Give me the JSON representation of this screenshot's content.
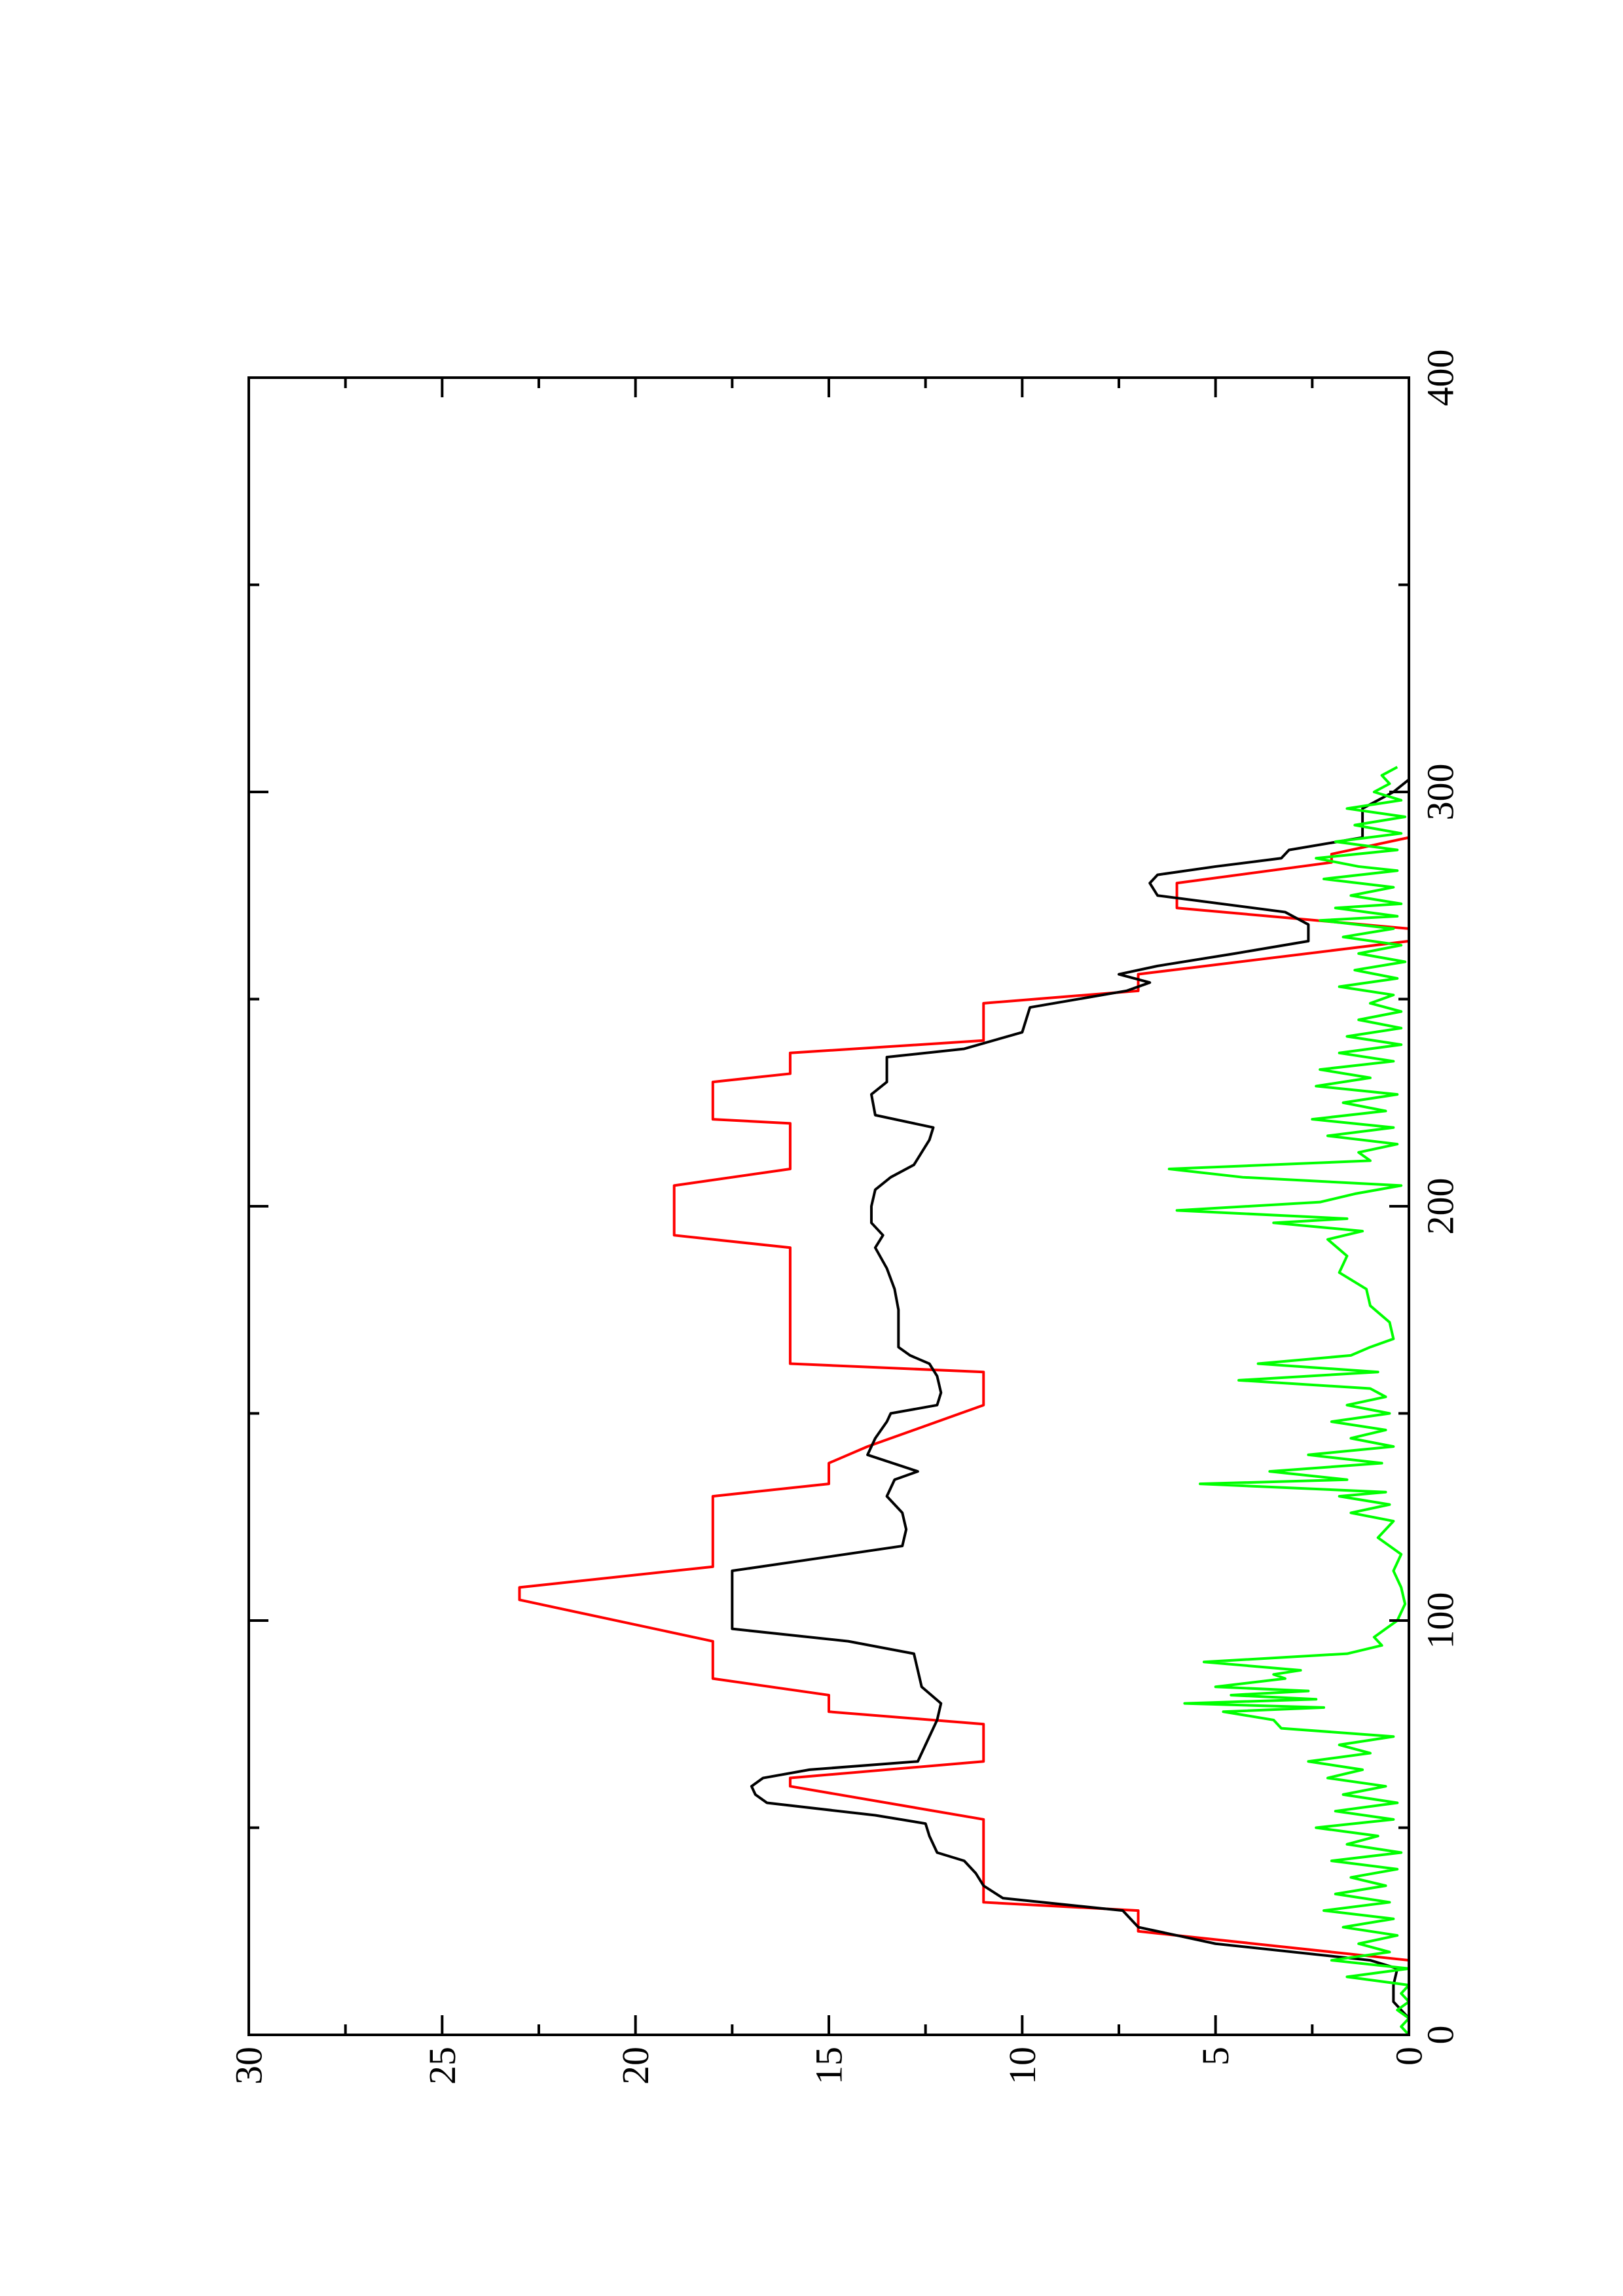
{
  "chart_data": {
    "type": "line",
    "orientation": "rotated-90-ccw",
    "title": "",
    "xlabel": "",
    "ylabel": "",
    "xlim": [
      0,
      400
    ],
    "ylim": [
      0,
      30
    ],
    "x_ticks": [
      0,
      100,
      200,
      300,
      400
    ],
    "y_ticks": [
      0,
      5,
      10,
      15,
      20,
      25,
      30
    ],
    "x_tick_labels": [
      "0",
      "100",
      "200",
      "300",
      "400"
    ],
    "y_tick_labels": [
      "0",
      "5",
      "10",
      "15",
      "20",
      "25",
      "30"
    ],
    "x_minor_step": 50,
    "y_minor_step": 2.5,
    "grid": false,
    "legend": "none",
    "series": [
      {
        "color": "#ff0000",
        "points": [
          [
            0,
            0
          ],
          [
            18,
            0
          ],
          [
            25,
            7
          ],
          [
            30,
            7
          ],
          [
            32,
            11
          ],
          [
            52,
            11
          ],
          [
            60,
            16
          ],
          [
            62,
            16
          ],
          [
            66,
            11
          ],
          [
            75,
            11
          ],
          [
            78,
            15
          ],
          [
            82,
            15
          ],
          [
            86,
            18
          ],
          [
            95,
            18
          ],
          [
            105,
            23
          ],
          [
            108,
            23
          ],
          [
            113,
            18
          ],
          [
            130,
            18
          ],
          [
            133,
            15
          ],
          [
            138,
            15
          ],
          [
            142,
            14
          ],
          [
            152,
            11
          ],
          [
            160,
            11
          ],
          [
            162,
            16
          ],
          [
            190,
            16
          ],
          [
            193,
            19
          ],
          [
            205,
            19
          ],
          [
            209,
            16
          ],
          [
            220,
            16
          ],
          [
            221,
            18
          ],
          [
            230,
            18
          ],
          [
            232,
            16
          ],
          [
            237,
            16
          ],
          [
            240,
            11
          ],
          [
            249,
            11
          ],
          [
            252,
            7
          ],
          [
            256,
            7
          ],
          [
            264,
            0
          ],
          [
            267,
            0
          ],
          [
            272,
            6
          ],
          [
            278,
            6
          ],
          [
            283,
            2
          ],
          [
            285,
            2
          ],
          [
            289,
            0
          ],
          [
            300,
            0
          ]
        ]
      },
      {
        "color": "#000000",
        "points": [
          [
            0,
            0
          ],
          [
            4,
            0
          ],
          [
            8,
            0.4
          ],
          [
            12,
            0.4
          ],
          [
            16,
            0.3
          ],
          [
            18,
            1
          ],
          [
            22,
            5
          ],
          [
            26,
            7
          ],
          [
            30,
            7.4
          ],
          [
            33,
            10.5
          ],
          [
            36,
            11
          ],
          [
            39,
            11.2
          ],
          [
            42,
            11.5
          ],
          [
            44,
            12.2
          ],
          [
            48,
            12.4
          ],
          [
            51,
            12.5
          ],
          [
            53,
            13.8
          ],
          [
            56,
            16.6
          ],
          [
            58,
            16.9
          ],
          [
            60,
            17
          ],
          [
            62,
            16.7
          ],
          [
            64,
            15.5
          ],
          [
            66,
            12.7
          ],
          [
            70,
            12.5
          ],
          [
            72,
            12.4
          ],
          [
            76,
            12.2
          ],
          [
            80,
            12.1
          ],
          [
            84,
            12.6
          ],
          [
            88,
            12.7
          ],
          [
            92,
            12.8
          ],
          [
            95,
            14.5
          ],
          [
            98,
            17.5
          ],
          [
            112,
            17.5
          ],
          [
            115,
            15.3
          ],
          [
            118,
            13.1
          ],
          [
            122,
            13
          ],
          [
            126,
            13.1
          ],
          [
            130,
            13.5
          ],
          [
            134,
            13.3
          ],
          [
            136,
            12.7
          ],
          [
            140,
            14
          ],
          [
            144,
            13.8
          ],
          [
            148,
            13.5
          ],
          [
            150,
            13.4
          ],
          [
            152,
            12.2
          ],
          [
            155,
            12.1
          ],
          [
            159,
            12.2
          ],
          [
            162,
            12.4
          ],
          [
            164,
            12.9
          ],
          [
            166,
            13.2
          ],
          [
            175,
            13.2
          ],
          [
            180,
            13.3
          ],
          [
            185,
            13.5
          ],
          [
            190,
            13.8
          ],
          [
            193,
            13.6
          ],
          [
            196,
            13.9
          ],
          [
            200,
            13.9
          ],
          [
            204,
            13.8
          ],
          [
            207,
            13.4
          ],
          [
            210,
            12.8
          ],
          [
            213,
            12.6
          ],
          [
            216,
            12.4
          ],
          [
            219,
            12.3
          ],
          [
            222,
            13.8
          ],
          [
            227,
            13.9
          ],
          [
            230,
            13.5
          ],
          [
            236,
            13.5
          ],
          [
            238,
            11.5
          ],
          [
            242,
            10
          ],
          [
            248,
            9.8
          ],
          [
            252,
            7.3
          ],
          [
            254,
            6.7
          ],
          [
            256,
            7.5
          ],
          [
            258,
            6.5
          ],
          [
            261,
            4.5
          ],
          [
            264,
            2.6
          ],
          [
            268,
            2.6
          ],
          [
            271,
            3.2
          ],
          [
            275,
            6.5
          ],
          [
            278,
            6.7
          ],
          [
            280,
            6.5
          ],
          [
            282,
            5
          ],
          [
            284,
            3.3
          ],
          [
            286,
            3.1
          ],
          [
            289,
            1.2
          ],
          [
            296,
            1.2
          ],
          [
            300,
            0.4
          ],
          [
            303,
            0
          ]
        ]
      },
      {
        "color": "#00ff00",
        "points": [
          [
            0,
            0
          ],
          [
            2,
            0.2
          ],
          [
            4,
            0
          ],
          [
            6,
            0.3
          ],
          [
            8,
            0
          ],
          [
            10,
            0.2
          ],
          [
            12,
            0
          ],
          [
            14,
            1.6
          ],
          [
            16,
            0
          ],
          [
            18,
            2.0
          ],
          [
            20,
            0.5
          ],
          [
            22,
            1.3
          ],
          [
            24,
            0.3
          ],
          [
            26,
            1.7
          ],
          [
            28,
            0.4
          ],
          [
            30,
            2.2
          ],
          [
            32,
            0.5
          ],
          [
            34,
            1.9
          ],
          [
            36,
            0.6
          ],
          [
            38,
            1.5
          ],
          [
            40,
            0.3
          ],
          [
            42,
            2.0
          ],
          [
            44,
            0.2
          ],
          [
            46,
            1.6
          ],
          [
            48,
            0.8
          ],
          [
            50,
            2.4
          ],
          [
            52,
            0.4
          ],
          [
            54,
            1.9
          ],
          [
            56,
            0.3
          ],
          [
            58,
            1.7
          ],
          [
            60,
            0.6
          ],
          [
            62,
            2.1
          ],
          [
            64,
            1.2
          ],
          [
            66,
            2.6
          ],
          [
            68,
            1.0
          ],
          [
            70,
            1.8
          ],
          [
            72,
            0.4
          ],
          [
            74,
            3.3
          ],
          [
            76,
            3.5
          ],
          [
            78,
            4.8
          ],
          [
            79,
            2.2
          ],
          [
            80,
            5.8
          ],
          [
            81,
            2.4
          ],
          [
            82,
            4.6
          ],
          [
            83,
            2.6
          ],
          [
            84,
            5.0
          ],
          [
            86,
            3.2
          ],
          [
            87,
            3.5
          ],
          [
            88,
            2.8
          ],
          [
            90,
            5.3
          ],
          [
            92,
            1.6
          ],
          [
            94,
            0.7
          ],
          [
            96,
            0.9
          ],
          [
            98,
            0.6
          ],
          [
            100,
            0.3
          ],
          [
            104,
            0.1
          ],
          [
            108,
            0.2
          ],
          [
            112,
            0.4
          ],
          [
            116,
            0.2
          ],
          [
            120,
            0.8
          ],
          [
            124,
            0.4
          ],
          [
            126,
            1.5
          ],
          [
            128,
            0.5
          ],
          [
            130,
            1.8
          ],
          [
            131,
            0.6
          ],
          [
            133,
            5.4
          ],
          [
            134,
            1.6
          ],
          [
            136,
            3.6
          ],
          [
            138,
            0.7
          ],
          [
            140,
            2.6
          ],
          [
            142,
            0.4
          ],
          [
            144,
            1.5
          ],
          [
            146,
            0.6
          ],
          [
            148,
            2.0
          ],
          [
            150,
            0.5
          ],
          [
            152,
            1.6
          ],
          [
            154,
            0.6
          ],
          [
            156,
            1.0
          ],
          [
            158,
            4.4
          ],
          [
            160,
            0.8
          ],
          [
            162,
            3.9
          ],
          [
            164,
            1.5
          ],
          [
            166,
            1.0
          ],
          [
            168,
            0.4
          ],
          [
            172,
            0.5
          ],
          [
            176,
            1.0
          ],
          [
            180,
            1.1
          ],
          [
            184,
            1.8
          ],
          [
            188,
            1.6
          ],
          [
            192,
            2.1
          ],
          [
            194,
            1.2
          ],
          [
            196,
            3.5
          ],
          [
            197,
            1.6
          ],
          [
            199,
            6.0
          ],
          [
            201,
            2.3
          ],
          [
            203,
            1.4
          ],
          [
            205,
            0.2
          ],
          [
            207,
            4.3
          ],
          [
            209,
            6.2
          ],
          [
            211,
            1.0
          ],
          [
            213,
            1.3
          ],
          [
            215,
            0.3
          ],
          [
            217,
            2.1
          ],
          [
            219,
            0.4
          ],
          [
            221,
            2.5
          ],
          [
            223,
            0.6
          ],
          [
            225,
            1.7
          ],
          [
            227,
            0.3
          ],
          [
            229,
            2.4
          ],
          [
            231,
            1.0
          ],
          [
            233,
            2.3
          ],
          [
            235,
            0.4
          ],
          [
            237,
            1.8
          ],
          [
            239,
            0.2
          ],
          [
            241,
            1.6
          ],
          [
            243,
            0.2
          ],
          [
            245,
            1.3
          ],
          [
            247,
            0.2
          ],
          [
            249,
            1.0
          ],
          [
            251,
            0.4
          ],
          [
            253,
            1.8
          ],
          [
            255,
            0.3
          ],
          [
            257,
            1.4
          ],
          [
            259,
            0.1
          ],
          [
            261,
            1.3
          ],
          [
            263,
            0.2
          ],
          [
            265,
            1.7
          ],
          [
            267,
            0.4
          ],
          [
            269,
            2.3
          ],
          [
            270,
            0.3
          ],
          [
            272,
            1.9
          ],
          [
            273,
            0.2
          ],
          [
            275,
            1.5
          ],
          [
            277,
            0.4
          ],
          [
            279,
            2.2
          ],
          [
            281,
            0.3
          ],
          [
            282,
            1.3
          ],
          [
            284,
            2.4
          ],
          [
            286,
            0.3
          ],
          [
            288,
            1.9
          ],
          [
            290,
            0.2
          ],
          [
            292,
            1.4
          ],
          [
            294,
            0.1
          ],
          [
            296,
            1.6
          ],
          [
            298,
            0.2
          ],
          [
            300,
            0.9
          ],
          [
            302,
            0.5
          ],
          [
            304,
            0.7
          ],
          [
            306,
            0.3
          ]
        ]
      }
    ]
  }
}
